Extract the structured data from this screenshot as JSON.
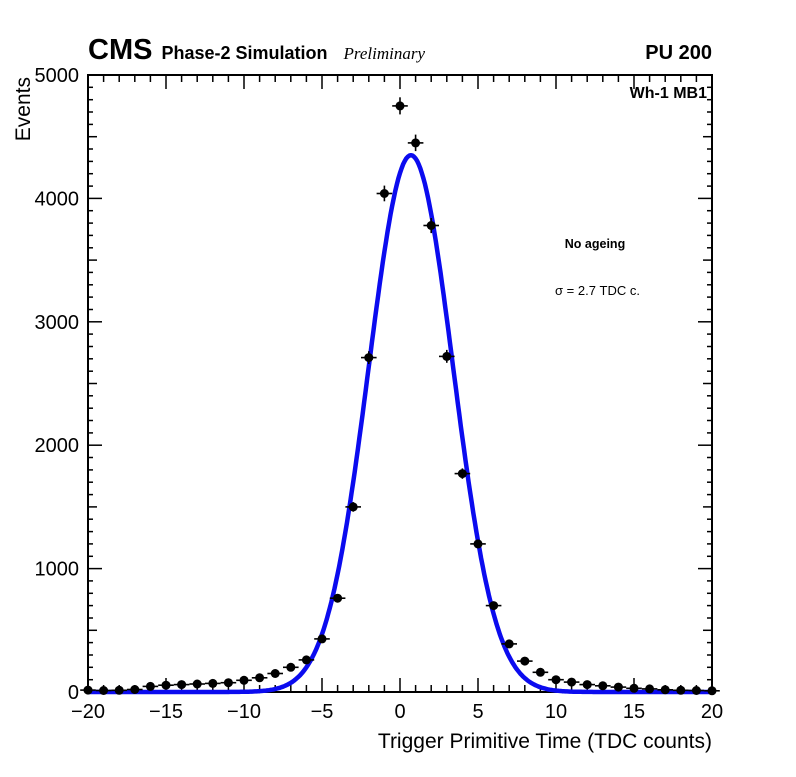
{
  "header": {
    "experiment": "CMS",
    "label": "Phase-2 Simulation",
    "status": "Preliminary",
    "pileup": "PU 200"
  },
  "plot": {
    "chamber_label": "Wh-1 MB1",
    "ageing_label": "No ageing",
    "sigma_label": "σ = 2.7 TDC c."
  },
  "chart_data": {
    "type": "scatter",
    "title": "",
    "xlabel": "Trigger Primitive Time (TDC counts)",
    "ylabel": "Events",
    "xlim": [
      -20,
      20
    ],
    "ylim": [
      0,
      5000
    ],
    "xticks": [
      -20,
      -15,
      -10,
      -5,
      0,
      5,
      10,
      15,
      20
    ],
    "yticks": [
      0,
      1000,
      2000,
      3000,
      4000,
      5000
    ],
    "x_minor_step": 1,
    "y_minor_step": 100,
    "grid": false,
    "legend": "none",
    "points": {
      "x": [
        -20,
        -19,
        -18,
        -17,
        -16,
        -15,
        -14,
        -13,
        -12,
        -11,
        -10,
        -9,
        -8,
        -7,
        -6,
        -5,
        -4,
        -3,
        -2,
        -1,
        0,
        1,
        2,
        3,
        4,
        5,
        6,
        7,
        8,
        9,
        10,
        11,
        12,
        13,
        14,
        15,
        16,
        17,
        18,
        19,
        20
      ],
      "y": [
        15,
        12,
        14,
        20,
        45,
        55,
        60,
        65,
        70,
        75,
        95,
        115,
        150,
        200,
        260,
        430,
        760,
        1500,
        2710,
        4040,
        4750,
        4450,
        3780,
        2720,
        1770,
        1200,
        700,
        390,
        250,
        160,
        100,
        80,
        60,
        50,
        40,
        30,
        25,
        18,
        14,
        12,
        10
      ],
      "x_err": 0.5,
      "y_err": "sqrt",
      "marker": "filled-circle",
      "marker_color": "#000000"
    },
    "fit": {
      "shape": "gaussian",
      "amplitude": 4350,
      "mean": 0.7,
      "sigma": 2.7,
      "color": "#0b0bef",
      "line_width": 4.5
    }
  }
}
